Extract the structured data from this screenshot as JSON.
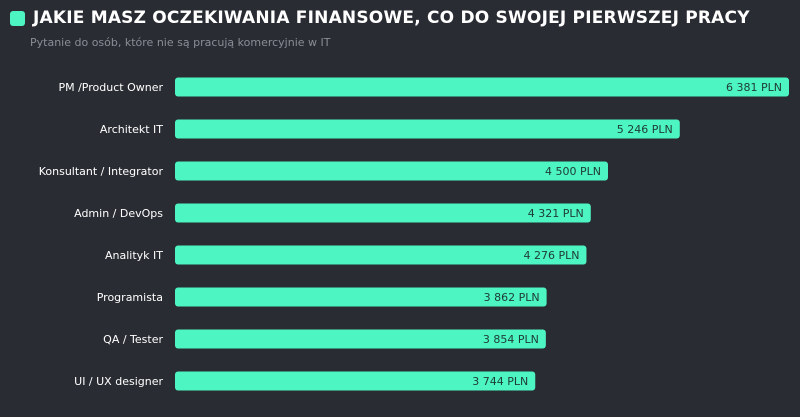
{
  "chart_data": {
    "type": "bar",
    "orientation": "horizontal",
    "title": "JAKIE MASZ OCZEKIWANIA FINANSOWE, CO DO SWOJEJ PIERWSZEJ PRACY",
    "subtitle": "Pytanie do osób, które nie są pracują komercyjnie w IT",
    "categories": [
      "PM /Product Owner",
      "Architekt IT",
      "Konsultant / Integrator",
      "Admin / DevOps",
      "Analityk IT",
      "Programista",
      "QA / Tester",
      "UI / UX designer"
    ],
    "values": [
      6381,
      5246,
      4500,
      4321,
      4276,
      3862,
      3854,
      3744
    ],
    "labels": [
      "6 381 PLN",
      "5 246 PLN",
      "4 500 PLN",
      "4 321 PLN",
      "4 276 PLN",
      "3 862 PLN",
      "3 854 PLN",
      "3 744 PLN"
    ],
    "unit": "PLN",
    "bar_color": "#4cf5c2",
    "background": "#2a2c33",
    "grid": false
  }
}
